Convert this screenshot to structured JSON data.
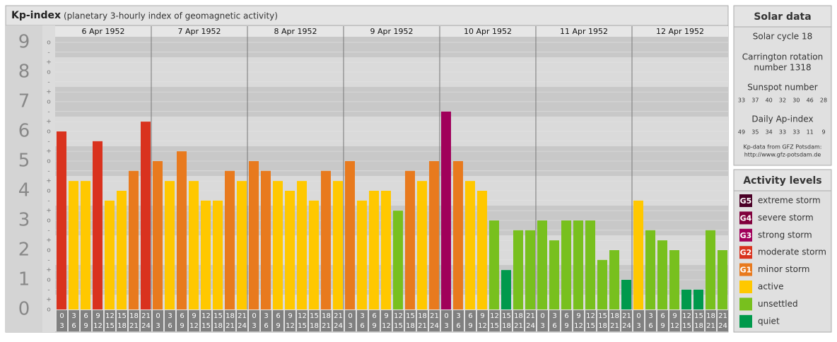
{
  "chart_data": {
    "type": "bar",
    "title": "Kp-index",
    "subtitle": "(planetary 3-hourly index of geomagnetic activity)",
    "ylim": [
      0,
      9.19
    ],
    "ymajor": [
      0,
      1,
      2,
      3,
      4,
      5,
      6,
      7,
      8,
      9
    ],
    "yticks": [
      {
        "value": 9,
        "label": "o"
      },
      {
        "value": 8.67,
        "label": "-"
      },
      {
        "value": 8.33,
        "label": "+"
      },
      {
        "value": 8,
        "label": "o"
      },
      {
        "value": 7.67,
        "label": "-"
      },
      {
        "value": 7.33,
        "label": "+"
      },
      {
        "value": 7,
        "label": "o"
      },
      {
        "value": 6.67,
        "label": "-"
      },
      {
        "value": 6.33,
        "label": "+"
      },
      {
        "value": 6,
        "label": "o"
      },
      {
        "value": 5.67,
        "label": "-"
      },
      {
        "value": 5.33,
        "label": "+"
      },
      {
        "value": 5,
        "label": "o"
      },
      {
        "value": 4.67,
        "label": "-"
      },
      {
        "value": 4.33,
        "label": "+"
      },
      {
        "value": 4,
        "label": "o"
      },
      {
        "value": 3.67,
        "label": "-"
      },
      {
        "value": 3.33,
        "label": "+"
      },
      {
        "value": 3,
        "label": "o"
      },
      {
        "value": 2.67,
        "label": "-"
      },
      {
        "value": 2.33,
        "label": "+"
      },
      {
        "value": 2,
        "label": "o"
      },
      {
        "value": 1.67,
        "label": "-"
      },
      {
        "value": 1.33,
        "label": "+"
      },
      {
        "value": 1,
        "label": "o"
      },
      {
        "value": 0.67,
        "label": "-"
      },
      {
        "value": 0.33,
        "label": "+"
      },
      {
        "value": 0,
        "label": "o"
      }
    ],
    "hours": [
      [
        "0",
        "3"
      ],
      [
        "3",
        "6"
      ],
      [
        "6",
        "9"
      ],
      [
        "9",
        "12"
      ],
      [
        "12",
        "15"
      ],
      [
        "15",
        "18"
      ],
      [
        "18",
        "21"
      ],
      [
        "21",
        "24"
      ]
    ],
    "days": [
      {
        "date": "6 Apr 1952",
        "values": [
          6,
          4.33,
          4.33,
          5.67,
          3.67,
          4,
          4.67,
          6.33
        ],
        "colors": [
          "#d9321e",
          "#ffc800",
          "#ffc800",
          "#d9321e",
          "#ffc800",
          "#ffc800",
          "#e87a1e",
          "#d9321e"
        ]
      },
      {
        "date": "7 Apr 1952",
        "values": [
          5,
          4.33,
          5.33,
          4.33,
          3.67,
          3.67,
          4.67,
          4.33
        ],
        "colors": [
          "#e87a1e",
          "#ffc800",
          "#e87a1e",
          "#ffc800",
          "#ffc800",
          "#ffc800",
          "#e87a1e",
          "#ffc800"
        ]
      },
      {
        "date": "8 Apr 1952",
        "values": [
          5,
          4.67,
          4.33,
          4,
          4.33,
          3.67,
          4.67,
          4.33
        ],
        "colors": [
          "#e87a1e",
          "#e87a1e",
          "#ffc800",
          "#ffc800",
          "#ffc800",
          "#ffc800",
          "#e87a1e",
          "#ffc800"
        ]
      },
      {
        "date": "9 Apr 1952",
        "values": [
          5,
          3.67,
          4,
          4,
          3.33,
          4.67,
          4.33,
          5
        ],
        "colors": [
          "#e87a1e",
          "#ffc800",
          "#ffc800",
          "#ffc800",
          "#78c01e",
          "#e87a1e",
          "#ffc800",
          "#e87a1e"
        ]
      },
      {
        "date": "10 Apr 1952",
        "values": [
          6.67,
          5,
          4.33,
          4,
          3,
          1.33,
          2.67,
          2.67
        ],
        "colors": [
          "#a0005a",
          "#e87a1e",
          "#ffc800",
          "#ffc800",
          "#78c01e",
          "#00994c",
          "#78c01e",
          "#78c01e"
        ]
      },
      {
        "date": "11 Apr 1952",
        "values": [
          3,
          2.33,
          3,
          3,
          3,
          1.67,
          2,
          1
        ],
        "colors": [
          "#78c01e",
          "#78c01e",
          "#78c01e",
          "#78c01e",
          "#78c01e",
          "#78c01e",
          "#78c01e",
          "#00994c"
        ]
      },
      {
        "date": "12 Apr 1952",
        "values": [
          3.67,
          2.67,
          2.33,
          2,
          0.67,
          0.67,
          2.67,
          2
        ],
        "colors": [
          "#ffc800",
          "#78c01e",
          "#78c01e",
          "#78c01e",
          "#00994c",
          "#00994c",
          "#78c01e",
          "#78c01e"
        ]
      }
    ]
  },
  "solar": {
    "title": "Solar data",
    "cycle": "Solar cycle 18",
    "rotation": [
      "Carrington rotation",
      "number 1318"
    ],
    "sunspot_title": "Sunspot number",
    "sunspots": [
      33,
      37,
      40,
      32,
      30,
      46,
      28
    ],
    "ap_title": "Daily Ap-index",
    "ap": [
      49,
      35,
      34,
      33,
      33,
      11,
      9
    ],
    "source": [
      "Kp-data from GFZ Potsdam:",
      "http://www.gfz-potsdam.de"
    ]
  },
  "legend": {
    "title": "Activity levels",
    "items": [
      {
        "badge": "G5",
        "label": "extreme storm",
        "color": "#4a0026"
      },
      {
        "badge": "G4",
        "label": "severe storm",
        "color": "#80003c"
      },
      {
        "badge": "G3",
        "label": "strong storm",
        "color": "#a0005a"
      },
      {
        "badge": "G2",
        "label": "moderate storm",
        "color": "#d9321e"
      },
      {
        "badge": "G1",
        "label": "minor storm",
        "color": "#e87a1e"
      },
      {
        "label": "active",
        "color": "#ffc800"
      },
      {
        "label": "unsettled",
        "color": "#78c01e"
      },
      {
        "label": "quiet",
        "color": "#00994c"
      }
    ]
  }
}
